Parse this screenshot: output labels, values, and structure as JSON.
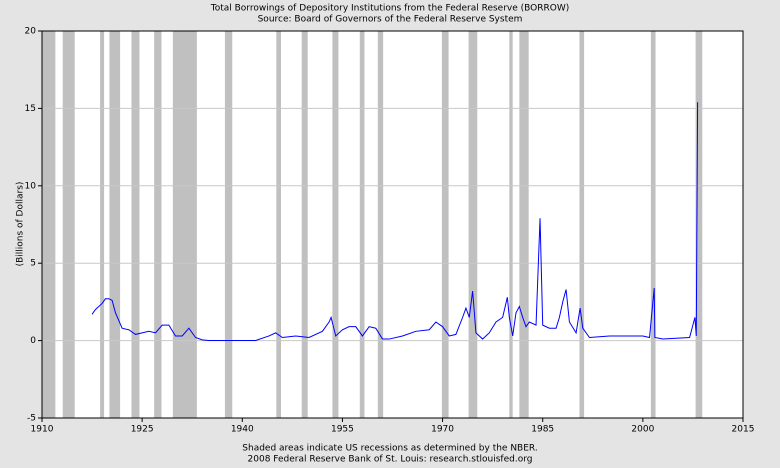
{
  "chart_data": {
    "type": "line",
    "title": "Total Borrowings of Depository Institutions from the Federal Reserve (BORROW)",
    "subtitle": "Source: Board of Governors of the Federal Reserve System",
    "y_label": "(Billions of Dollars)",
    "notes": [
      "Shaded areas indicate US recessions as determined by the NBER.",
      "2008 Federal Reserve Bank of St. Louis: research.stlouisfed.org"
    ],
    "color": "#0000ff",
    "recession_color": "#c0c0c0",
    "grid": true,
    "xlim": [
      1910,
      2015
    ],
    "xticks": [
      1910,
      1925,
      1940,
      1955,
      1970,
      1985,
      2000,
      2015
    ],
    "ylim": [
      -5,
      20
    ],
    "yticks": [
      -5,
      0,
      5,
      10,
      15,
      20
    ],
    "recessions": [
      [
        1910,
        1912
      ],
      [
        1913.1,
        1914.9
      ],
      [
        1918.7,
        1919.3
      ],
      [
        1920.1,
        1921.7
      ],
      [
        1923.4,
        1924.6
      ],
      [
        1926.8,
        1927.9
      ],
      [
        1929.6,
        1933.2
      ],
      [
        1937.4,
        1938.5
      ],
      [
        1945.1,
        1945.8
      ],
      [
        1948.9,
        1949.8
      ],
      [
        1953.5,
        1954.4
      ],
      [
        1957.6,
        1958.3
      ],
      [
        1960.3,
        1961.1
      ],
      [
        1969.9,
        1970.9
      ],
      [
        1973.9,
        1975.2
      ],
      [
        1980,
        1980.5
      ],
      [
        1981.5,
        1982.9
      ],
      [
        1990.5,
        1991.2
      ],
      [
        2001.2,
        2001.9
      ],
      [
        2007.9,
        2008.9
      ]
    ],
    "x": [
      1917.5,
      1918,
      1919,
      1919.5,
      1920,
      1920.5,
      1921,
      1922,
      1923,
      1924,
      1925,
      1926,
      1927,
      1928,
      1929,
      1930,
      1931,
      1932,
      1933,
      1934,
      1935,
      1940,
      1942,
      1944,
      1945,
      1946,
      1948,
      1950,
      1952,
      1953,
      1953.3,
      1954,
      1955,
      1956,
      1957,
      1958,
      1959,
      1960,
      1961,
      1962,
      1964,
      1966,
      1968,
      1969,
      1970,
      1971,
      1972,
      1973,
      1973.5,
      1974,
      1974.5,
      1975,
      1976,
      1977,
      1978,
      1979,
      1979.7,
      1980,
      1980.5,
      1981,
      1981.5,
      1982,
      1982.5,
      1983,
      1984,
      1984.6,
      1985,
      1986,
      1987,
      1987.5,
      1988,
      1988.5,
      1989,
      1990,
      1990.6,
      1991,
      1992,
      1995,
      2000,
      2001,
      2001.7,
      2001.8,
      2003,
      2007,
      2007.8,
      2008,
      2008.2
    ],
    "values": [
      1.7,
      2.0,
      2.4,
      2.7,
      2.7,
      2.6,
      1.8,
      0.8,
      0.7,
      0.4,
      0.5,
      0.6,
      0.5,
      1.0,
      1.0,
      0.3,
      0.3,
      0.8,
      0.2,
      0.05,
      0.01,
      0.01,
      0.01,
      0.3,
      0.5,
      0.2,
      0.3,
      0.2,
      0.6,
      1.2,
      1.5,
      0.3,
      0.7,
      0.9,
      0.9,
      0.3,
      0.9,
      0.8,
      0.1,
      0.1,
      0.3,
      0.6,
      0.7,
      1.2,
      0.9,
      0.3,
      0.4,
      1.5,
      2.1,
      1.5,
      3.2,
      0.5,
      0.1,
      0.5,
      1.2,
      1.5,
      2.8,
      1.5,
      0.3,
      1.8,
      2.2,
      1.5,
      0.9,
      1.2,
      1.0,
      7.9,
      1.0,
      0.8,
      0.8,
      1.5,
      2.5,
      3.3,
      1.2,
      0.5,
      2.1,
      0.8,
      0.2,
      0.3,
      0.3,
      0.2,
      3.4,
      0.2,
      0.1,
      0.2,
      1.5,
      0.3,
      15.4
    ]
  }
}
